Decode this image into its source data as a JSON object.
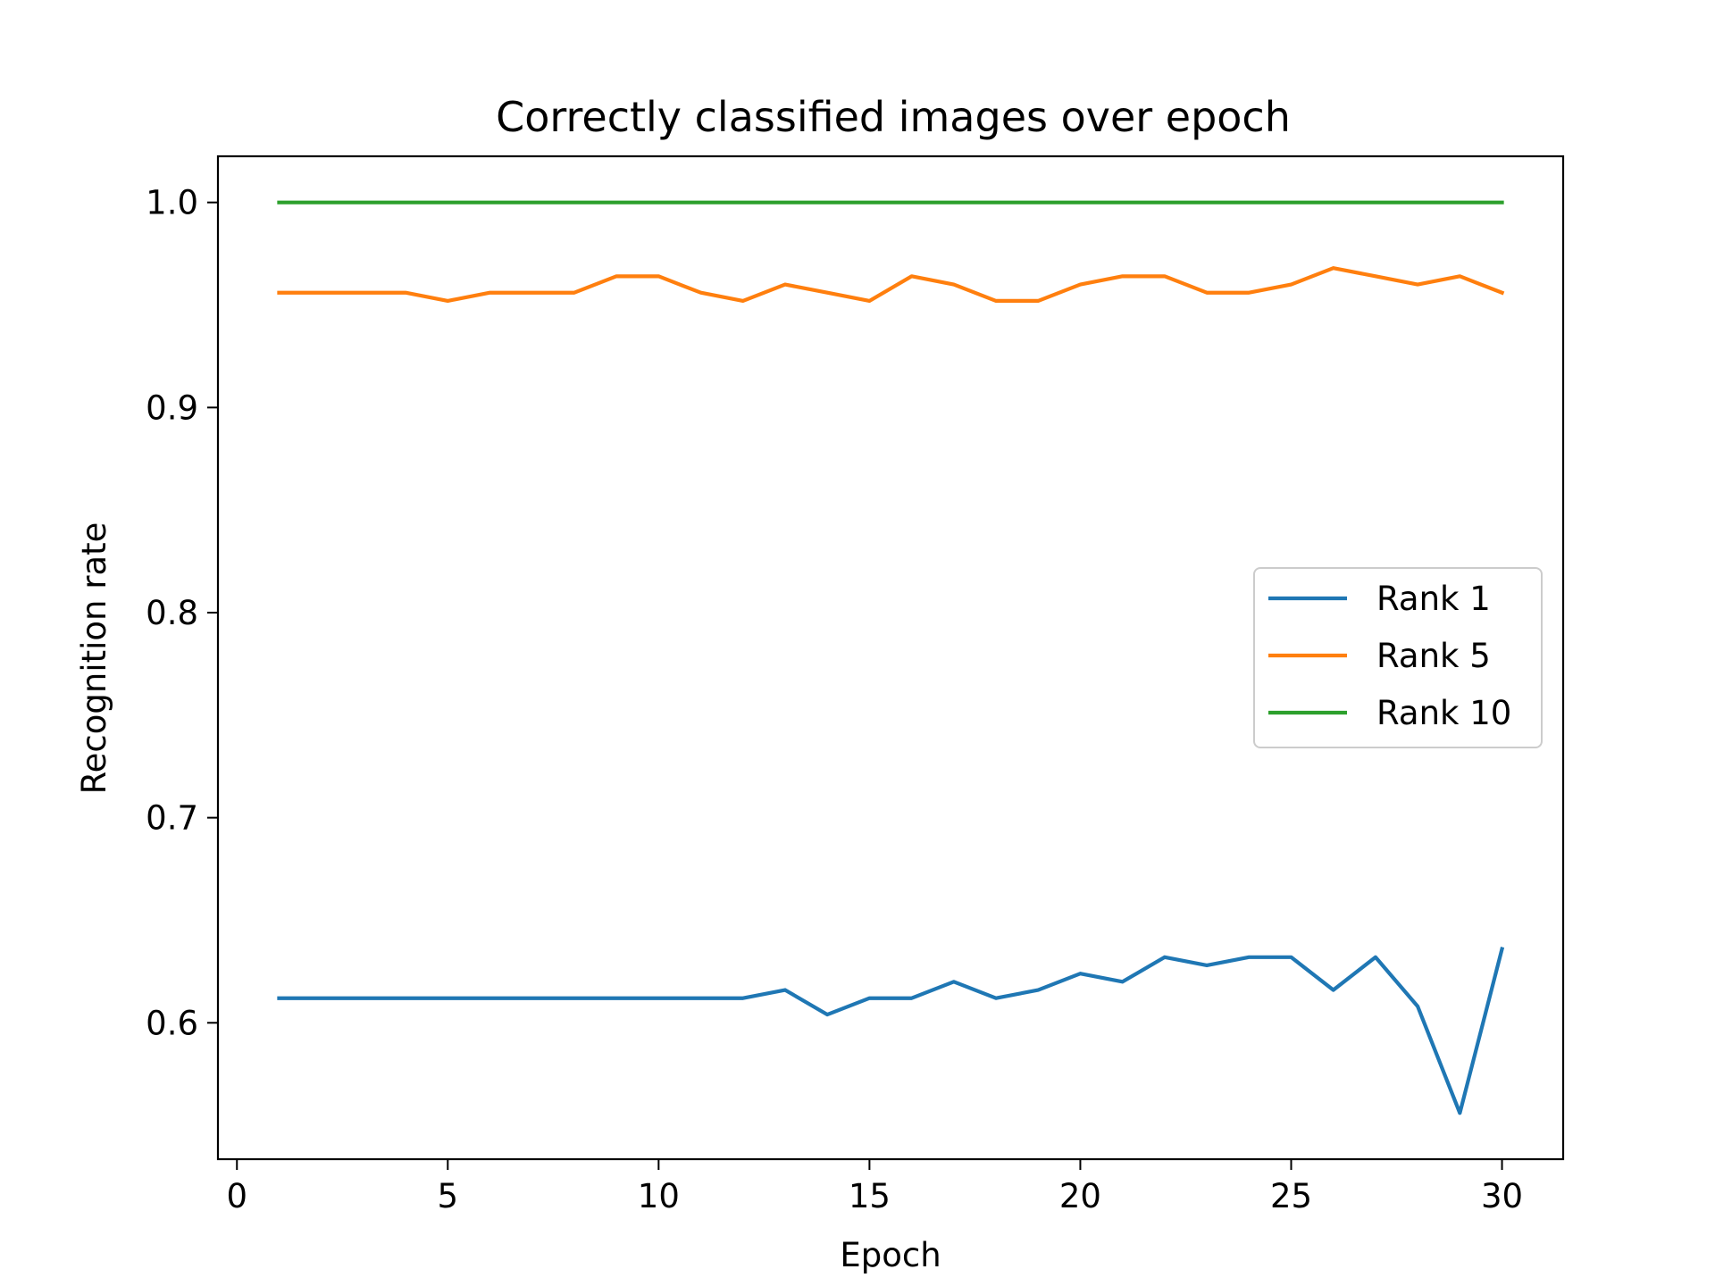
{
  "chart_data": {
    "type": "line",
    "title": "Correctly classified images over epoch",
    "xlabel": "Epoch",
    "ylabel": "Recognition rate",
    "xlim": [
      -0.45,
      31.45
    ],
    "ylim": [
      0.5335,
      1.0225
    ],
    "xticks": [
      0,
      5,
      10,
      15,
      20,
      25,
      30
    ],
    "xtick_labels": [
      "0",
      "5",
      "10",
      "15",
      "20",
      "25",
      "30"
    ],
    "yticks": [
      0.6,
      0.7,
      0.8,
      0.9,
      1.0
    ],
    "ytick_labels": [
      "0.6",
      "0.7",
      "0.8",
      "0.9",
      "1.0"
    ],
    "grid": false,
    "legend_position": "center-right",
    "x": [
      1,
      2,
      3,
      4,
      5,
      6,
      7,
      8,
      9,
      10,
      11,
      12,
      13,
      14,
      15,
      16,
      17,
      18,
      19,
      20,
      21,
      22,
      23,
      24,
      25,
      26,
      27,
      28,
      29,
      30
    ],
    "series": [
      {
        "name": "Rank 1",
        "color": "#1f77b4",
        "values": [
          0.612,
          0.612,
          0.612,
          0.612,
          0.612,
          0.612,
          0.612,
          0.612,
          0.612,
          0.612,
          0.612,
          0.612,
          0.616,
          0.604,
          0.612,
          0.612,
          0.62,
          0.612,
          0.616,
          0.624,
          0.62,
          0.632,
          0.628,
          0.632,
          0.632,
          0.616,
          0.632,
          0.608,
          0.556,
          0.636
        ]
      },
      {
        "name": "Rank 5",
        "color": "#ff7f0e",
        "values": [
          0.956,
          0.956,
          0.956,
          0.956,
          0.952,
          0.956,
          0.956,
          0.956,
          0.964,
          0.964,
          0.956,
          0.952,
          0.96,
          0.956,
          0.952,
          0.964,
          0.96,
          0.952,
          0.952,
          0.96,
          0.964,
          0.964,
          0.956,
          0.956,
          0.96,
          0.968,
          0.964,
          0.96,
          0.964,
          0.956
        ]
      },
      {
        "name": "Rank 10",
        "color": "#2ca02c",
        "values": [
          1.0,
          1.0,
          1.0,
          1.0,
          1.0,
          1.0,
          1.0,
          1.0,
          1.0,
          1.0,
          1.0,
          1.0,
          1.0,
          1.0,
          1.0,
          1.0,
          1.0,
          1.0,
          1.0,
          1.0,
          1.0,
          1.0,
          1.0,
          1.0,
          1.0,
          1.0,
          1.0,
          1.0,
          1.0,
          1.0
        ]
      }
    ]
  }
}
